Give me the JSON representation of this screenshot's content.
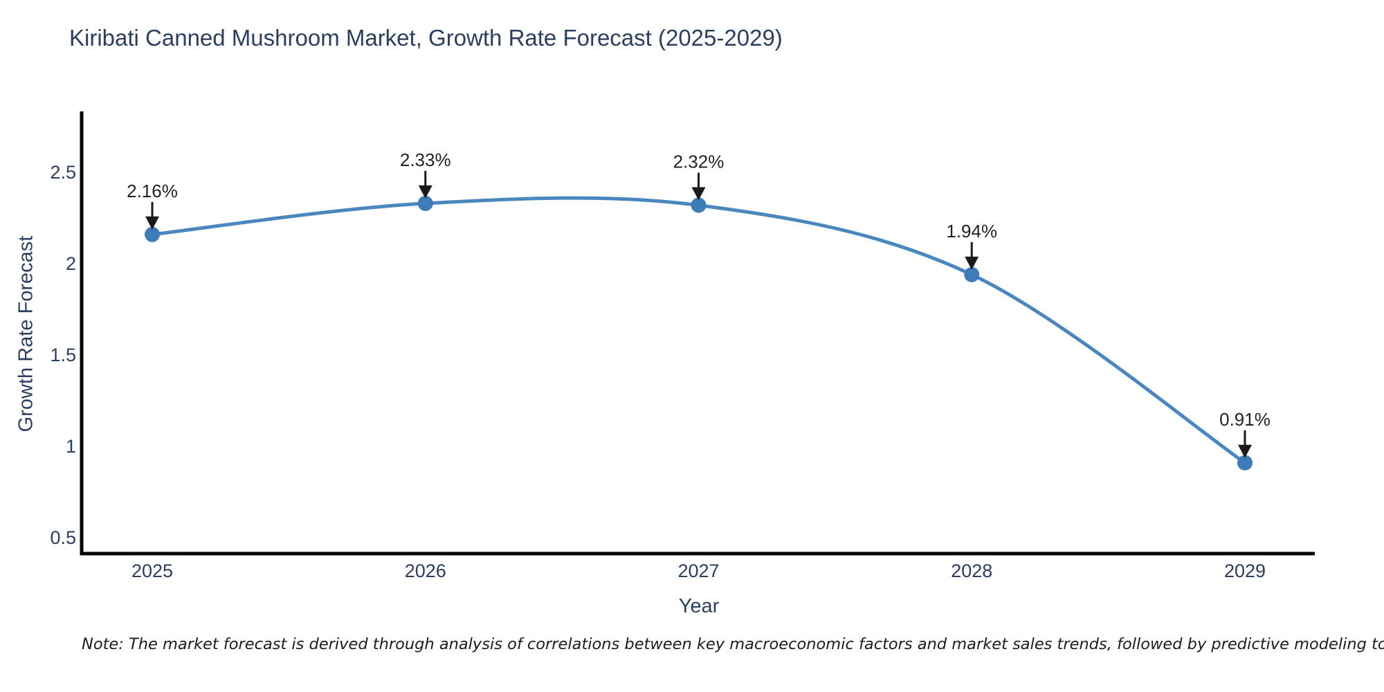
{
  "chart_data": {
    "type": "line",
    "line_shape": "spline",
    "title": "Kiribati Canned Mushroom Market, Growth Rate Forecast (2025-2029)",
    "xlabel": "Year",
    "ylabel": "Growth Rate Forecast",
    "x": [
      2025,
      2026,
      2027,
      2028,
      2029
    ],
    "series": [
      {
        "name": "Growth Rate Forecast",
        "values": [
          2.16,
          2.33,
          2.32,
          1.94,
          0.91
        ]
      }
    ],
    "point_labels": [
      "2.16%",
      "2.33%",
      "2.32%",
      "1.94%",
      "0.91%"
    ],
    "yticks": [
      0.5,
      1,
      1.5,
      2,
      2.5
    ],
    "ylim": [
      0.41,
      2.83
    ],
    "grid": false,
    "legend": "none",
    "colors": {
      "line": "#4a87be",
      "marker": "#3d7cb8",
      "axis": "#000000",
      "tick_text": "#2a3f5f",
      "annotation": "#1a1a1a"
    }
  },
  "note": {
    "text": "Note: The market forecast is derived through analysis of correlations between key macroeconomic factors and market sales trends, followed by predictive modeling to project future sales"
  }
}
